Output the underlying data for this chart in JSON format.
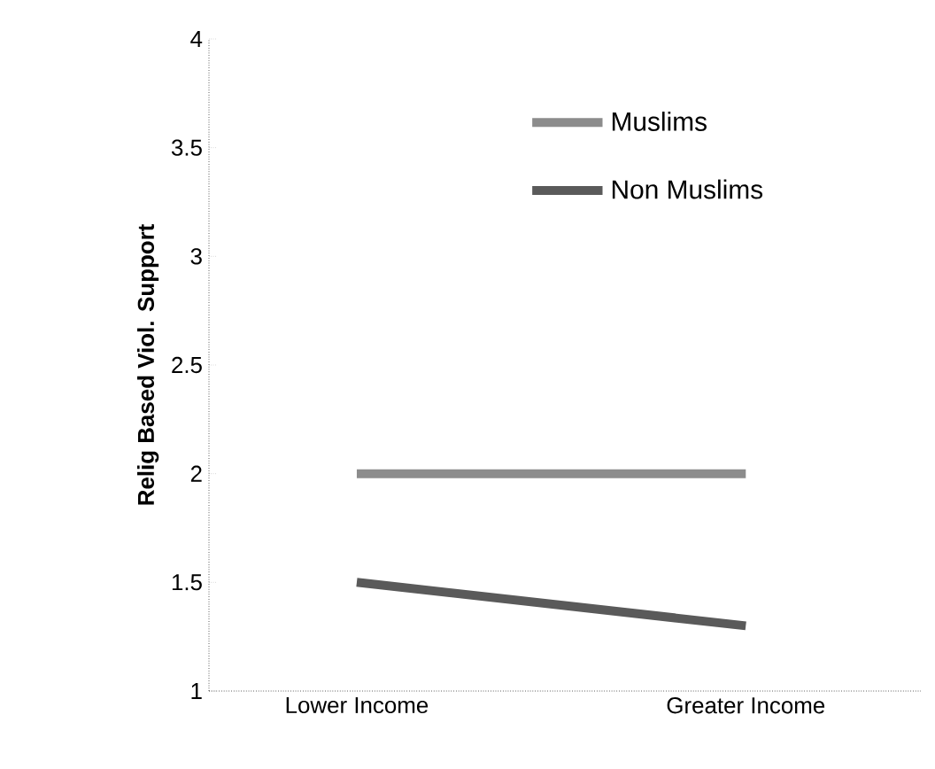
{
  "chart_data": {
    "type": "line",
    "ylabel": "Relig Based Viol. Support",
    "categories": [
      "Lower Income",
      "Greater Income"
    ],
    "series": [
      {
        "name": "Muslims",
        "color": "#8c8c8c",
        "values": [
          2.0,
          2.0
        ]
      },
      {
        "name": "Non Muslims",
        "color": "#5a5a5a",
        "values": [
          1.5,
          1.3
        ]
      }
    ],
    "ylim": [
      1,
      4
    ],
    "yticks": [
      1,
      1.5,
      2,
      2.5,
      3,
      3.5,
      4
    ],
    "grid": false,
    "legend": "top right",
    "marker": "none",
    "line_style": "solid"
  }
}
